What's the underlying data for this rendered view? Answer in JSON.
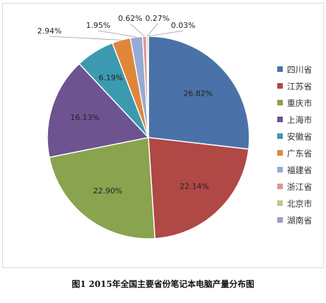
{
  "caption": "图1  2015年全国主要省份笔记本电脑产量分布图",
  "chart_data": {
    "type": "pie",
    "categories": [
      "四川省",
      "江苏省",
      "重庆市",
      "上海市",
      "安徽省",
      "广东省",
      "福建省",
      "浙江省",
      "北京市",
      "湖南省"
    ],
    "values": [
      26.82,
      22.14,
      22.9,
      16.13,
      6.19,
      2.94,
      1.95,
      0.62,
      0.27,
      0.03
    ],
    "labels": [
      "26.82%",
      "22.14%",
      "22.90%",
      "16.13%",
      "6.19%",
      "2.94%",
      "1.95%",
      "0.62%",
      "0.27%",
      "0.03%"
    ],
    "colors": [
      "#4a72a8",
      "#b04846",
      "#8aa34e",
      "#6d5390",
      "#3c9ab0",
      "#e0863a",
      "#95abd6",
      "#dc9694",
      "#b6cd8c",
      "#a79abf"
    ],
    "legend_position": "right",
    "start": "12 o'clock",
    "direction": "clockwise"
  }
}
